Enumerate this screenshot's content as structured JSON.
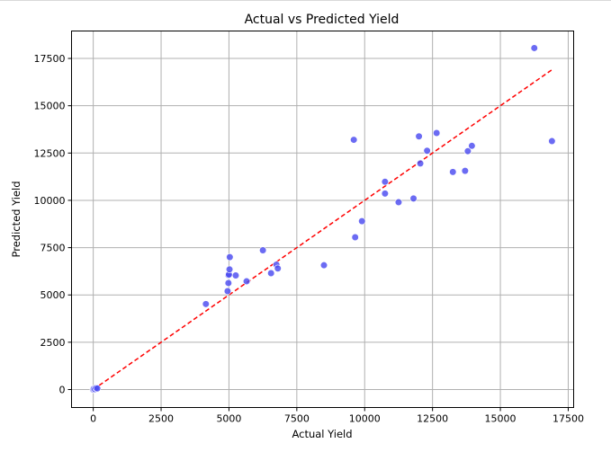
{
  "chart_data": {
    "type": "scatter",
    "title": "Actual vs Predicted Yield",
    "xlabel": "Actual Yield",
    "ylabel": "Predicted Yield",
    "xlim": [
      -800,
      17700
    ],
    "ylim": [
      -950,
      18950
    ],
    "xticks": [
      0,
      2500,
      5000,
      7500,
      10000,
      12500,
      15000,
      17500
    ],
    "yticks": [
      0,
      2500,
      5000,
      7500,
      10000,
      12500,
      15000,
      17500
    ],
    "grid": true,
    "point_color": "#4a4af0",
    "reference_line": {
      "style": "dashed",
      "color": "#ff0000",
      "x": [
        0,
        16900
      ],
      "y": [
        0,
        16900
      ]
    },
    "points": [
      {
        "x": 0,
        "y": 0
      },
      {
        "x": 20,
        "y": 40
      },
      {
        "x": 60,
        "y": 20
      },
      {
        "x": 100,
        "y": 80
      },
      {
        "x": 150,
        "y": 60
      },
      {
        "x": 4150,
        "y": 4520
      },
      {
        "x": 4950,
        "y": 5200
      },
      {
        "x": 4980,
        "y": 5630
      },
      {
        "x": 4980,
        "y": 6050
      },
      {
        "x": 5000,
        "y": 6080
      },
      {
        "x": 5020,
        "y": 6350
      },
      {
        "x": 5030,
        "y": 7000
      },
      {
        "x": 5250,
        "y": 6030
      },
      {
        "x": 5650,
        "y": 5720
      },
      {
        "x": 6250,
        "y": 7360
      },
      {
        "x": 6550,
        "y": 6150
      },
      {
        "x": 6750,
        "y": 6600
      },
      {
        "x": 6800,
        "y": 6400
      },
      {
        "x": 8500,
        "y": 6570
      },
      {
        "x": 9600,
        "y": 13200
      },
      {
        "x": 9650,
        "y": 8050
      },
      {
        "x": 9900,
        "y": 8900
      },
      {
        "x": 10750,
        "y": 10980
      },
      {
        "x": 10750,
        "y": 10360
      },
      {
        "x": 11250,
        "y": 9900
      },
      {
        "x": 11800,
        "y": 10100
      },
      {
        "x": 12000,
        "y": 13380
      },
      {
        "x": 12050,
        "y": 11950
      },
      {
        "x": 12300,
        "y": 12620
      },
      {
        "x": 12650,
        "y": 13560
      },
      {
        "x": 13250,
        "y": 11500
      },
      {
        "x": 13700,
        "y": 11560
      },
      {
        "x": 13800,
        "y": 12600
      },
      {
        "x": 13950,
        "y": 12880
      },
      {
        "x": 16250,
        "y": 18050
      },
      {
        "x": 16900,
        "y": 13130
      }
    ]
  }
}
